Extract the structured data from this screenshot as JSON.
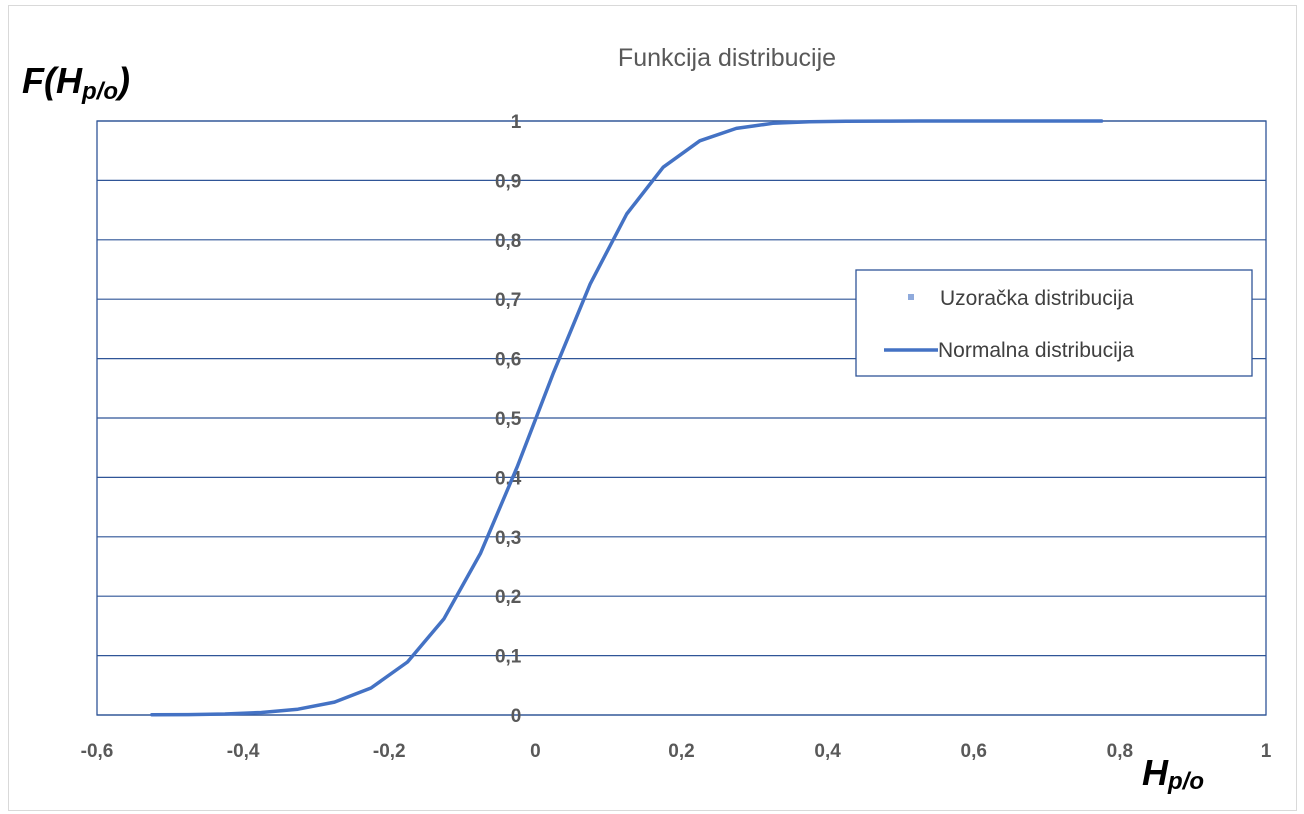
{
  "chart_data": {
    "type": "line",
    "title": "Funkcija distribucije",
    "ylabel": {
      "main": "F(H",
      "sub": "p/o",
      "close": ")"
    },
    "xlabel": {
      "main": "H",
      "sub": "p/o"
    },
    "xlim": [
      -0.6,
      1
    ],
    "ylim": [
      0,
      1
    ],
    "x_ticks": [
      "-0,6",
      "-0,4",
      "-0,2",
      "0",
      "0,2",
      "0,4",
      "0,6",
      "0,8",
      "1"
    ],
    "y_ticks": [
      "0",
      "0,1",
      "0,2",
      "0,3",
      "0,4",
      "0,5",
      "0,6",
      "0,7",
      "0,8",
      "0,9",
      "1"
    ],
    "grid": {
      "horizontal": true,
      "vertical": false
    },
    "legend": {
      "placement": "right",
      "entries": [
        {
          "label": "Uzoračka distribucija",
          "marker": "square"
        },
        {
          "label": "Normalna distribucija",
          "marker": "line"
        }
      ]
    },
    "series": [
      {
        "name": "Normalna distribucija",
        "color": "#4472c4",
        "x": [
          -0.525,
          -0.475,
          -0.425,
          -0.375,
          -0.325,
          -0.275,
          -0.225,
          -0.175,
          -0.125,
          -0.075,
          -0.025,
          0.025,
          0.075,
          0.125,
          0.175,
          0.225,
          0.275,
          0.325,
          0.375,
          0.425,
          0.475,
          0.525,
          0.575,
          0.625,
          0.675,
          0.725,
          0.775
        ],
        "y": [
          0.0003,
          0.0007,
          0.0017,
          0.0042,
          0.0098,
          0.0218,
          0.0455,
          0.0892,
          0.1621,
          0.2725,
          0.4174,
          0.5768,
          0.7257,
          0.8435,
          0.9223,
          0.9666,
          0.9876,
          0.9961,
          0.9989,
          0.9997,
          0.9999,
          1.0,
          1.0,
          1.0,
          1.0,
          1.0,
          1.0
        ]
      },
      {
        "name": "Uzoračka distribucija",
        "color": "#8faadc",
        "x": [],
        "y": []
      }
    ]
  }
}
